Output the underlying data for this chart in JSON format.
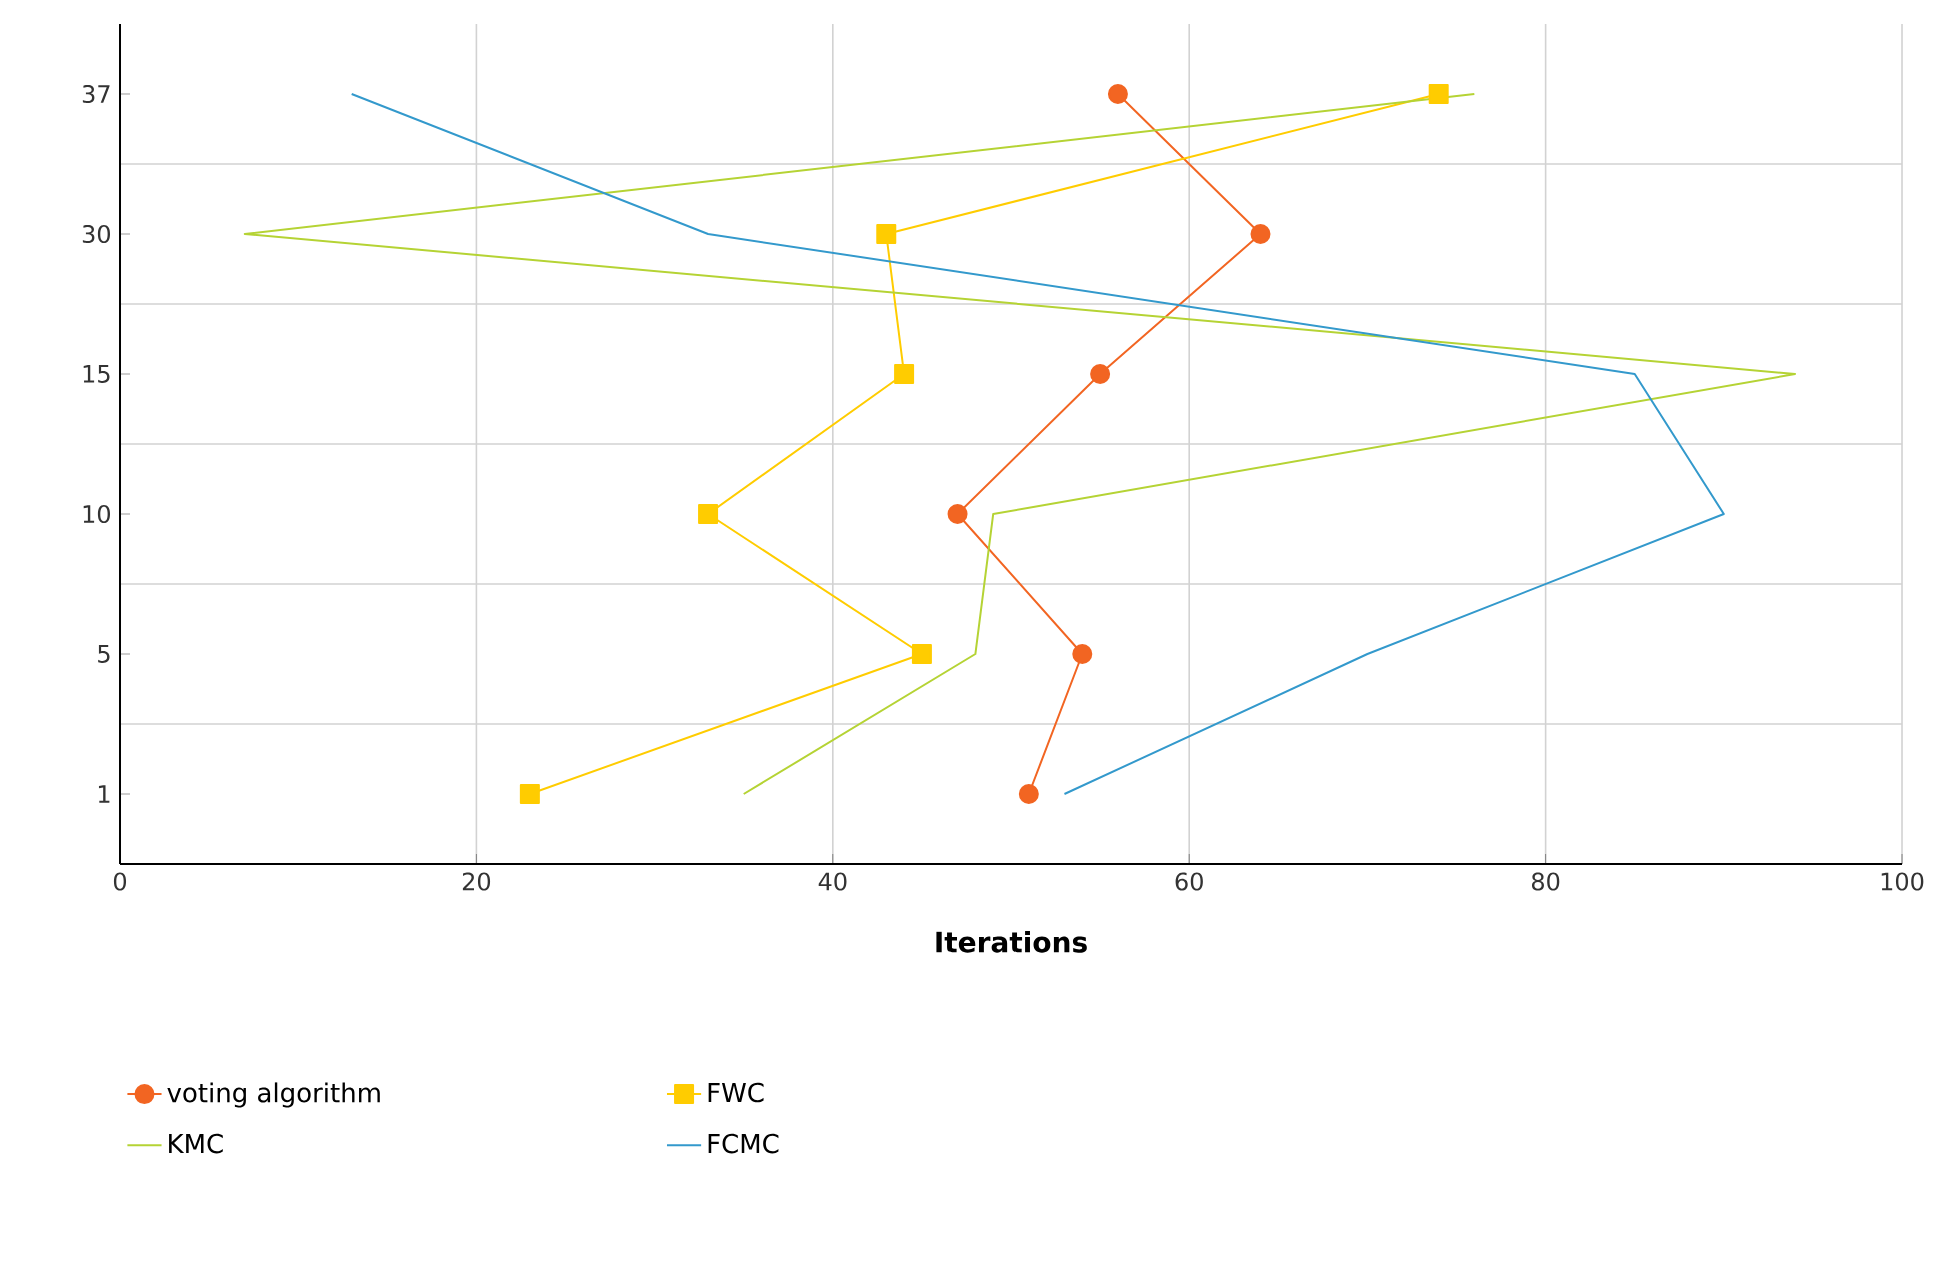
{
  "chart_data": {
    "type": "line",
    "orientation": "horizontal",
    "xlabel": "Iterations",
    "categories": [
      "37",
      "30",
      "15",
      "10",
      "5",
      "1"
    ],
    "xlim": [
      0,
      100
    ],
    "xticks": [
      0,
      20,
      40,
      60,
      80,
      100
    ],
    "grid": true,
    "legend": "bottom",
    "series": [
      {
        "name": "voting algorithm",
        "color": "#f26522",
        "marker": "circle",
        "values": [
          56,
          64,
          55,
          47,
          54,
          51
        ]
      },
      {
        "name": "FWC",
        "color": "#ffcc00",
        "marker": "square",
        "values": [
          74,
          43,
          44,
          33,
          45,
          23
        ]
      },
      {
        "name": "KMC",
        "color": "#b5d334",
        "marker": "none",
        "values": [
          76,
          7,
          94,
          49,
          48,
          35
        ]
      },
      {
        "name": "FCMC",
        "color": "#3399cc",
        "marker": "none",
        "values": [
          13,
          33,
          85,
          90,
          70,
          53
        ]
      }
    ]
  }
}
